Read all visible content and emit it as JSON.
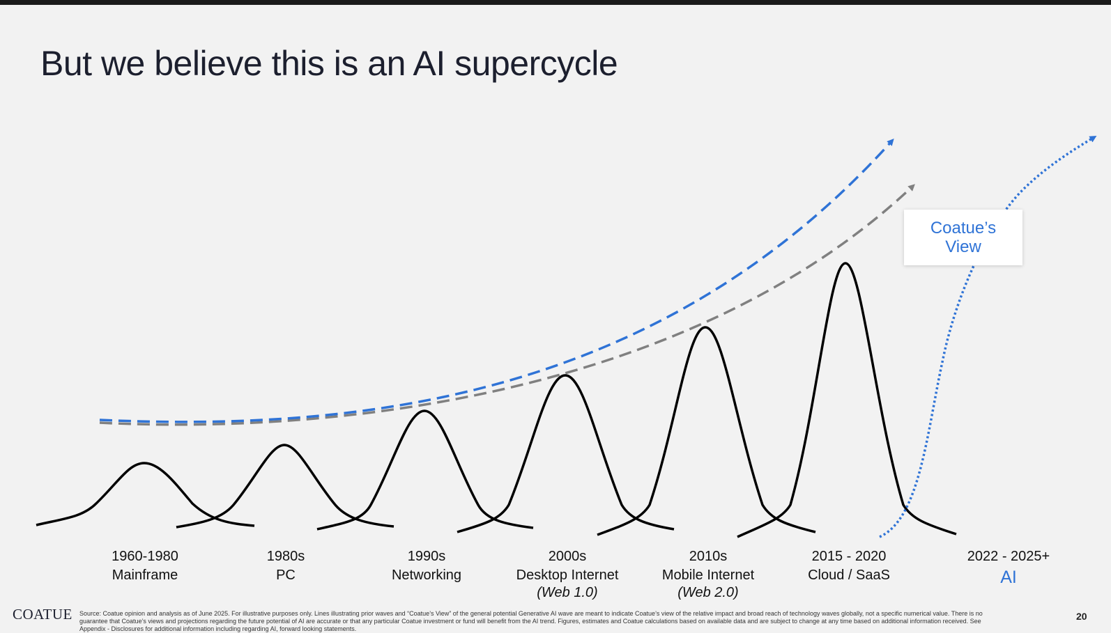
{
  "title": "But we believe this is an AI supercycle",
  "waves": [
    {
      "period": "1960-1980",
      "name": "Mainframe",
      "sub": ""
    },
    {
      "period": "1980s",
      "name": "PC",
      "sub": ""
    },
    {
      "period": "1990s",
      "name": "Networking",
      "sub": ""
    },
    {
      "period": "2000s",
      "name": "Desktop Internet",
      "sub": "(Web 1.0)"
    },
    {
      "period": "2010s",
      "name": "Mobile Internet",
      "sub": "(Web 2.0)"
    },
    {
      "period": "2015 - 2020",
      "name": "Cloud / SaaS",
      "sub": ""
    },
    {
      "period": "2022 - 2025+",
      "name": "AI",
      "sub": ""
    }
  ],
  "callout": "Coatue’s\nView",
  "colors": {
    "accent": "#2f73d6",
    "trend_gray": "#808080",
    "curve": "#000000"
  },
  "logo": "COATUE",
  "footnote": "Source: Coatue opinion and analysis as of June 2025. For illustrative purposes only. Lines illustrating prior waves and “Coatue’s View” of the general potential Generative AI wave are meant to indicate Coatue’s view of the relative impact and broad reach of technology waves globally, not a specific numerical value. There is no guarantee that Coatue’s views and projections regarding the future potential of AI are accurate or that any particular Coatue investment or fund will benefit from the AI trend. Figures, estimates and Coatue calculations based on available data and are subject to change at any time based on additional information received. See Appendix - Disclosures for additional information including regarding AI, forward looking statements.",
  "page_number": "20"
}
